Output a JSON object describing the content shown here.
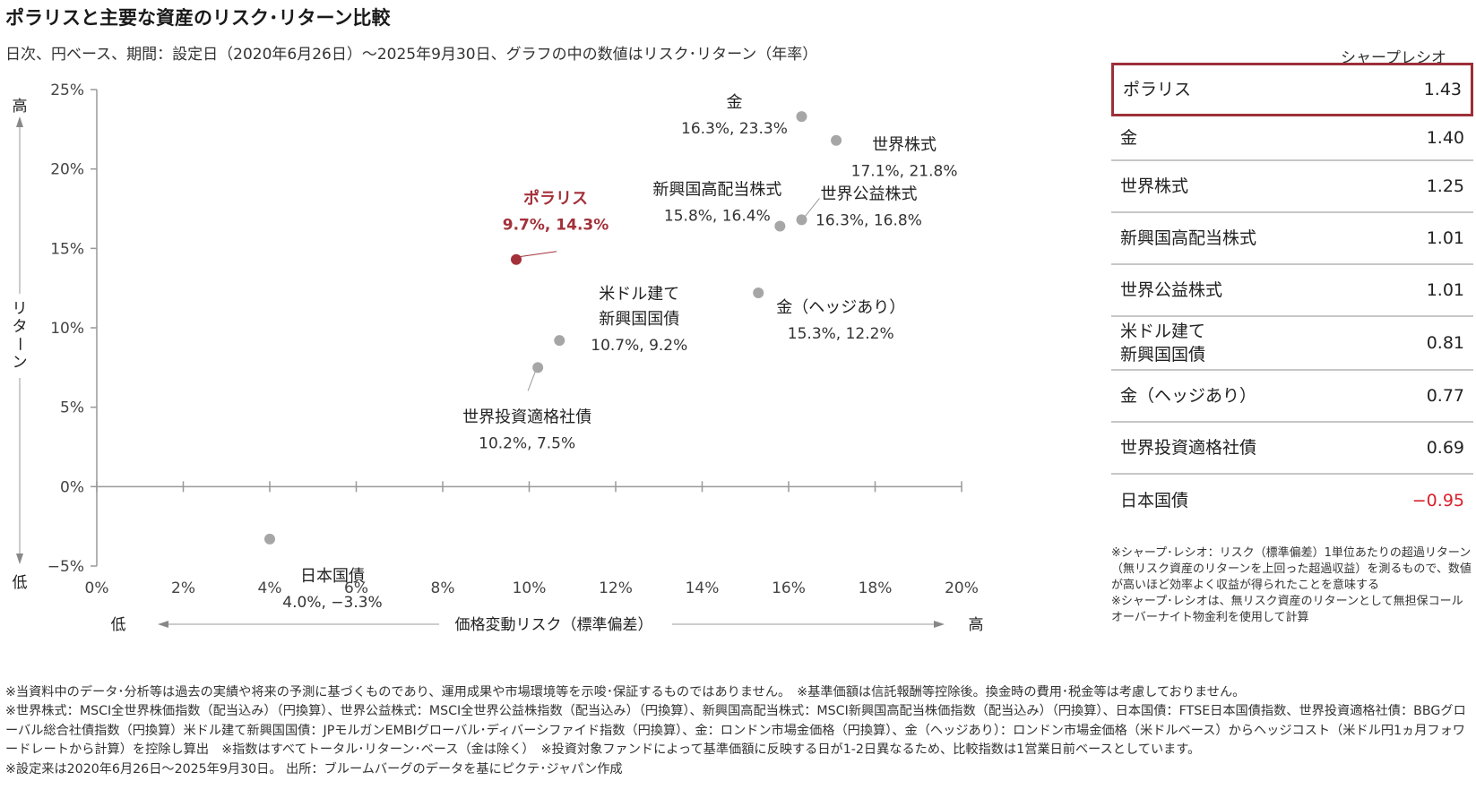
{
  "title": "ポラリスと主要な資産のリスク･リターン比較",
  "subtitle": "日次、円ベース、期間：設定日（2020年6月26日）～2025年9月30日、グラフの中の数値はリスク･リターン（年率）",
  "chart_data": {
    "type": "scatter",
    "xlim": [
      0,
      20
    ],
    "ylim": [
      -5,
      25
    ],
    "x_ticks": [
      "0%",
      "2%",
      "4%",
      "6%",
      "8%",
      "10%",
      "12%",
      "14%",
      "16%",
      "18%",
      "20%"
    ],
    "y_ticks": [
      "−5%",
      "0%",
      "5%",
      "10%",
      "15%",
      "20%",
      "25%"
    ],
    "x_axis": {
      "low": "低",
      "label": "価格変動リスク（標準偏差）",
      "high": "高"
    },
    "y_axis": {
      "high": "高",
      "label": "リターン",
      "low": "低"
    },
    "grid": false,
    "points": [
      {
        "name": "ポラリス",
        "value_label": "9.7%, 14.3%",
        "x": 9.7,
        "y": 14.3,
        "highlight": true
      },
      {
        "name": "金",
        "value_label": "16.3%, 23.3%",
        "x": 16.3,
        "y": 23.3
      },
      {
        "name": "世界株式",
        "value_label": "17.1%, 21.8%",
        "x": 17.1,
        "y": 21.8
      },
      {
        "name": "新興国高配当株式",
        "value_label": "15.8%, 16.4%",
        "x": 15.8,
        "y": 16.4
      },
      {
        "name": "世界公益株式",
        "value_label": "16.3%, 16.8%",
        "x": 16.3,
        "y": 16.8
      },
      {
        "name": "金（ヘッジあり）",
        "value_label": "15.3%, 12.2%",
        "x": 15.3,
        "y": 12.2
      },
      {
        "name": "米ドル建て\n新興国国債",
        "value_label": "10.7%, 9.2%",
        "x": 10.7,
        "y": 9.2
      },
      {
        "name": "世界投資適格社債",
        "value_label": "10.2%, 7.5%",
        "x": 10.2,
        "y": 7.5
      },
      {
        "name": "日本国債",
        "value_label": "4.0%, −3.3%",
        "x": 4.0,
        "y": -3.3
      }
    ],
    "colors": {
      "highlight": "#a3313a",
      "point": "#a6a6a6",
      "axis": "#999999"
    }
  },
  "sharpe_table": {
    "header": "シャープレシオ",
    "rows": [
      {
        "name": "ポラリス",
        "value": "1.43",
        "highlight": true
      },
      {
        "name": "金",
        "value": "1.40"
      },
      {
        "name": "世界株式",
        "value": "1.25"
      },
      {
        "name": "新興国高配当株式",
        "value": "1.01"
      },
      {
        "name": "世界公益株式",
        "value": "1.01"
      },
      {
        "name": "米ドル建て\n新興国国債",
        "value": "0.81"
      },
      {
        "name": "金（ヘッジあり）",
        "value": "0.77"
      },
      {
        "name": "世界投資適格社債",
        "value": "0.69"
      },
      {
        "name": "日本国債",
        "value": "−0.95",
        "negative": true
      }
    ],
    "note": "※シャープ･レシオ：リスク（標準偏差）1単位あたりの超過リターン（無リスク資産のリターンを上回った超過収益）を測るもので、数値が高いほど効率よく収益が得られたことを意味する\n※シャープ･レシオは、無リスク資産のリターンとして無担保コールオーバーナイト物金利を使用して計算"
  },
  "footnotes": [
    "※当資料中のデータ･分析等は過去の実績や将来の予測に基づくものであり、運用成果や市場環境等を示唆･保証するものではありません。　※基準価額は信託報酬等控除後。換金時の費用･税金等は考慮しておりません。",
    "※世界株式：MSCI全世界株価指数（配当込み）（円換算）、世界公益株式：MSCI全世界公益株指数（配当込み）（円換算）、新興国高配当株式：MSCI新興国高配当株価指数（配当込み）（円換算）、日本国債：FTSE日本国債指数、世界投資適格社債：BBGグローバル総合社債指数（円換算）米ドル建て新興国国債：JPモルガンEMBIグローバル･ディバーシファイド指数（円換算）、金：ロンドン市場金価格（円換算）、金（ヘッジあり）：ロンドン市場金価格（米ドルベース）からヘッジコスト（米ドル円1ヵ月フォワードレートから計算）を控除し算出　※指数はすべてトータル･リターン･ベース（金は除く）　※投資対象ファンドによって基準価額に反映する日が1-2日異なるため、比較指数は1営業日前ベースとしています。",
    "※設定来は2020年6月26日～2025年9月30日。 出所：ブルームバーグのデータを基にピクテ･ジャパン作成"
  ]
}
